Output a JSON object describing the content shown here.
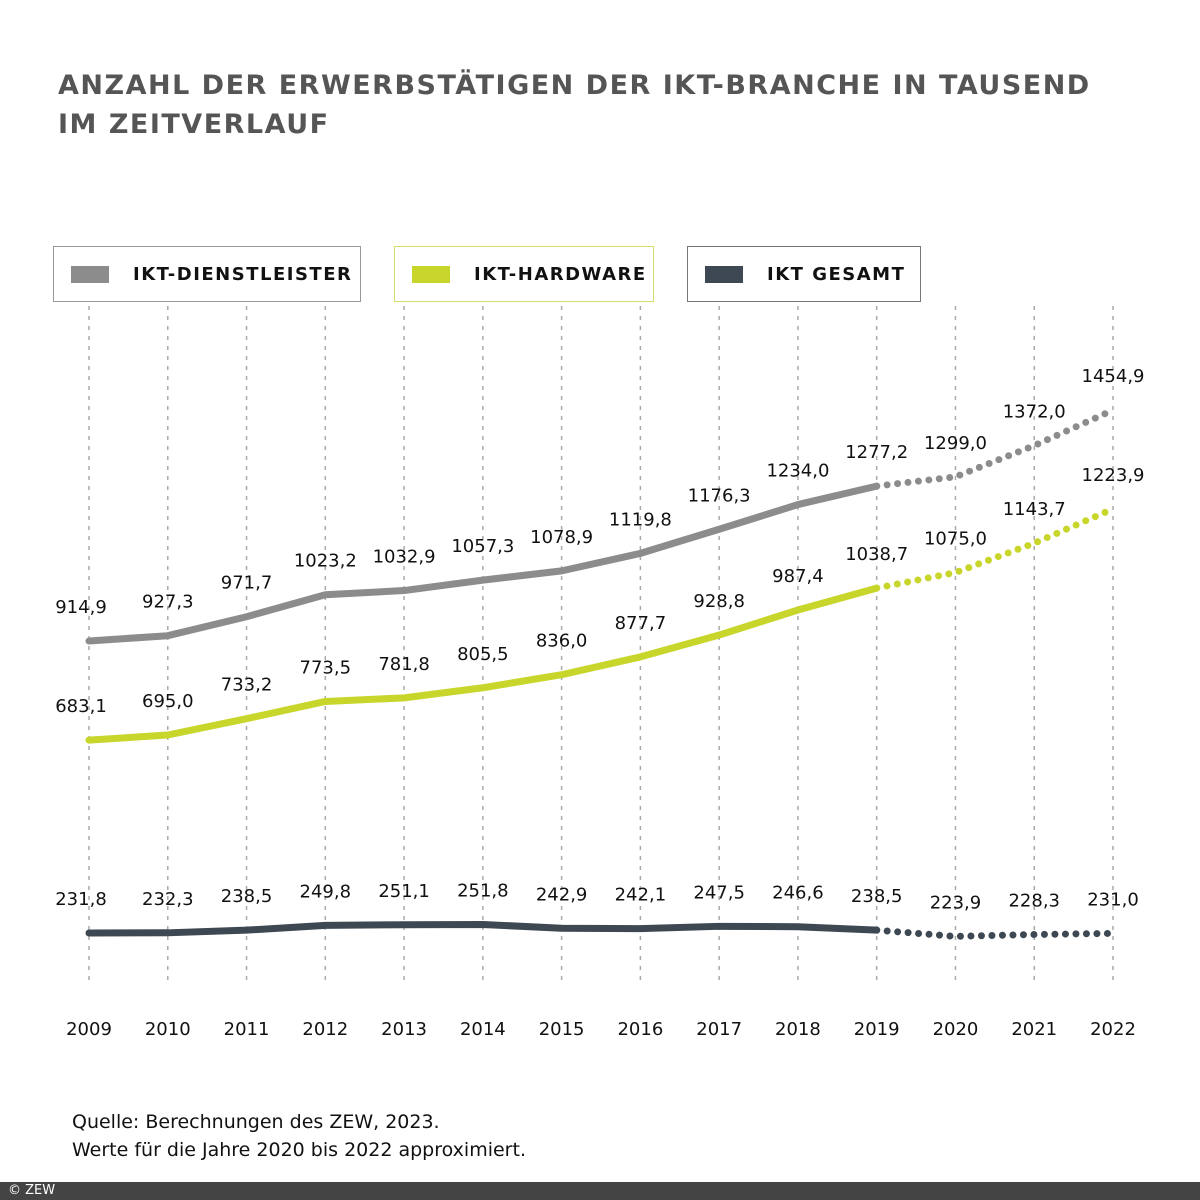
{
  "chart_data": {
    "type": "line",
    "title": "ANZAHL DER ERWERBSTÄTIGEN DER IKT-BRANCHE IN TAUSEND",
    "subtitle": "IM ZEITVERLAUF",
    "x": [
      "2009",
      "2010",
      "2011",
      "2012",
      "2013",
      "2014",
      "2015",
      "2016",
      "2017",
      "2018",
      "2019",
      "2020",
      "2021",
      "2022"
    ],
    "projected_from": "2019",
    "grid": "vertical dotted",
    "legend_position": "top",
    "series": [
      {
        "name": "IKT-DIENSTLEISTER",
        "color": "#8c8c8c",
        "values": [
          914.9,
          927.3,
          971.7,
          1023.2,
          1032.9,
          1057.3,
          1078.9,
          1119.8,
          1176.3,
          1234.0,
          1277.2,
          1299.0,
          1372.0,
          1454.9
        ],
        "labels": [
          "914,9",
          "927,3",
          "971,7",
          "1023,2",
          "1032,9",
          "1057,3",
          "1078,9",
          "1119,8",
          "1176,3",
          "1234,0",
          "1277,2",
          "1299,0",
          "1372,0",
          "1454,9"
        ]
      },
      {
        "name": "IKT-HARDWARE",
        "color": "#c8d62b",
        "values": [
          683.1,
          695.0,
          733.2,
          773.5,
          781.8,
          805.5,
          836.0,
          877.7,
          928.8,
          987.4,
          1038.7,
          1075.0,
          1143.7,
          1223.9
        ],
        "labels": [
          "683,1",
          "695,0",
          "733,2",
          "773,5",
          "781,8",
          "805,5",
          "836,0",
          "877,7",
          "928,8",
          "987,4",
          "1038,7",
          "1075,0",
          "1143,7",
          "1223,9"
        ]
      },
      {
        "name": "IKT GESAMT",
        "color": "#3d4852",
        "values": [
          231.8,
          232.3,
          238.5,
          249.8,
          251.1,
          251.8,
          242.9,
          242.1,
          247.5,
          246.6,
          238.5,
          223.9,
          228.3,
          231.0
        ],
        "labels": [
          "231,8",
          "232,3",
          "238,5",
          "249,8",
          "251,1",
          "251,8",
          "242,9",
          "242,1",
          "247,5",
          "246,6",
          "238,5",
          "223,9",
          "228,3",
          "231,0"
        ]
      }
    ]
  },
  "source": [
    "Quelle: Berechnungen des ZEW, 2023.",
    "Werte für die Jahre 2020 bis 2022 approximiert."
  ],
  "copyright": "© ZEW"
}
